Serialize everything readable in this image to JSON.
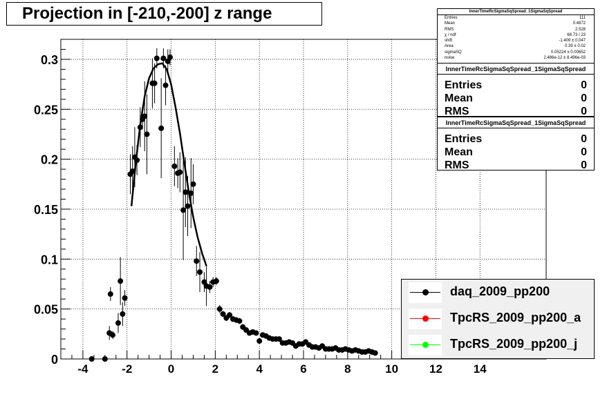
{
  "title": "Projection in [-210,-200] z range",
  "chart_data": {
    "type": "scatter",
    "xlim": [
      -5,
      17
    ],
    "ylim": [
      0,
      0.32
    ],
    "grid": true,
    "x_ticks": [
      "-4",
      "-2",
      "0",
      "2",
      "4",
      "6",
      "8",
      "10",
      "12",
      "14"
    ],
    "x_tick_values": [
      -4,
      -2,
      0,
      2,
      4,
      6,
      8,
      10,
      12,
      14
    ],
    "y_ticks": [
      "0",
      "0.05",
      "0.1",
      "0.15",
      "0.2",
      "0.25",
      "0.3"
    ],
    "y_tick_values": [
      0,
      0.05,
      0.1,
      0.15,
      0.2,
      0.25,
      0.3
    ],
    "series": [
      {
        "name": "daq_2009_pp200",
        "color": "#000000",
        "points": [
          [
            -3.6,
            0.0,
            0.0
          ],
          [
            -3.0,
            0.0,
            0.0
          ],
          [
            -2.8,
            0.026,
            0.007
          ],
          [
            -2.75,
            0.065,
            0.007
          ],
          [
            -2.65,
            0.024,
            0.004
          ],
          [
            -2.4,
            0.036,
            0.01
          ],
          [
            -2.3,
            0.078,
            0.024
          ],
          [
            -2.2,
            0.045,
            0.012
          ],
          [
            -2.1,
            0.061,
            0.008
          ],
          [
            -1.85,
            0.185,
            0.02
          ],
          [
            -1.75,
            0.188,
            0.025
          ],
          [
            -1.65,
            0.202,
            0.03
          ],
          [
            -1.55,
            0.199,
            0.015
          ],
          [
            -1.4,
            0.232,
            0.02
          ],
          [
            -1.3,
            0.24,
            0.01
          ],
          [
            -1.2,
            0.243,
            0.035
          ],
          [
            -1.1,
            0.225,
            0.04
          ],
          [
            -0.85,
            0.276,
            0.025
          ],
          [
            -0.75,
            0.276,
            0.02
          ],
          [
            -0.65,
            0.301,
            0.01
          ],
          [
            -0.45,
            0.231,
            0.05
          ],
          [
            -0.35,
            0.301,
            0.01
          ],
          [
            -0.25,
            0.274,
            0.02
          ],
          [
            -0.15,
            0.298,
            0.012
          ],
          [
            -0.05,
            0.302,
            0.008
          ],
          [
            0.15,
            0.193,
            0.02
          ],
          [
            0.3,
            0.186,
            0.015
          ],
          [
            0.4,
            0.187,
            0.02
          ],
          [
            0.55,
            0.149,
            0.05
          ],
          [
            0.65,
            0.167,
            0.035
          ],
          [
            0.75,
            0.153,
            0.03
          ],
          [
            0.9,
            0.166,
            0.035
          ],
          [
            1.0,
            0.175,
            0.02
          ],
          [
            1.15,
            0.098,
            0.015
          ],
          [
            1.3,
            0.087,
            0.02
          ],
          [
            1.5,
            0.077,
            0.01
          ],
          [
            1.6,
            0.073,
            0.02
          ],
          [
            1.75,
            0.072,
            0.006
          ],
          [
            1.9,
            0.077,
            0.005
          ],
          [
            2.05,
            0.078,
            0.004
          ],
          [
            2.2,
            0.05,
            0.004
          ],
          [
            2.35,
            0.045,
            0.003
          ],
          [
            2.5,
            0.041,
            0.003
          ],
          [
            2.65,
            0.044,
            0.003
          ],
          [
            2.8,
            0.04,
            0.003
          ],
          [
            2.95,
            0.039,
            0.003
          ],
          [
            3.1,
            0.038,
            0.003
          ],
          [
            3.25,
            0.032,
            0.003
          ],
          [
            3.4,
            0.029,
            0.002
          ],
          [
            3.55,
            0.026,
            0.002
          ],
          [
            3.7,
            0.027,
            0.002
          ],
          [
            3.85,
            0.026,
            0.002
          ],
          [
            4.0,
            0.018,
            0.002
          ],
          [
            4.15,
            0.024,
            0.002
          ],
          [
            4.3,
            0.023,
            0.002
          ],
          [
            4.45,
            0.021,
            0.002
          ],
          [
            4.6,
            0.02,
            0.002
          ],
          [
            4.75,
            0.02,
            0.002
          ],
          [
            4.9,
            0.02,
            0.002
          ],
          [
            5.05,
            0.016,
            0.002
          ],
          [
            5.2,
            0.016,
            0.002
          ],
          [
            5.35,
            0.017,
            0.002
          ],
          [
            5.5,
            0.016,
            0.002
          ],
          [
            5.65,
            0.013,
            0.002
          ],
          [
            5.8,
            0.015,
            0.002
          ],
          [
            5.95,
            0.015,
            0.002
          ],
          [
            6.1,
            0.017,
            0.002
          ],
          [
            6.25,
            0.014,
            0.002
          ],
          [
            6.4,
            0.012,
            0.002
          ],
          [
            6.55,
            0.012,
            0.002
          ],
          [
            6.7,
            0.011,
            0.002
          ],
          [
            6.85,
            0.013,
            0.002
          ],
          [
            7.0,
            0.01,
            0.002
          ],
          [
            7.15,
            0.01,
            0.002
          ],
          [
            7.3,
            0.01,
            0.002
          ],
          [
            7.45,
            0.011,
            0.002
          ],
          [
            7.6,
            0.009,
            0.002
          ],
          [
            7.75,
            0.009,
            0.002
          ],
          [
            7.9,
            0.01,
            0.002
          ],
          [
            8.05,
            0.009,
            0.002
          ],
          [
            8.2,
            0.008,
            0.002
          ],
          [
            8.35,
            0.009,
            0.002
          ],
          [
            8.5,
            0.008,
            0.002
          ],
          [
            8.65,
            0.007,
            0.002
          ],
          [
            8.8,
            0.007,
            0.002
          ],
          [
            8.95,
            0.008,
            0.002
          ],
          [
            9.1,
            0.007,
            0.002
          ],
          [
            9.25,
            0.006,
            0.002
          ]
        ]
      },
      {
        "name": "TpcRS_2009_pp200_a",
        "color": "#ff0000",
        "points": []
      },
      {
        "name": "TpcRS_2009_pp200_j",
        "color": "#00ff00",
        "points": []
      }
    ],
    "fit_curve": {
      "color": "#000000",
      "x": [
        -1.8,
        -1.6,
        -1.4,
        -1.2,
        -1.0,
        -0.8,
        -0.6,
        -0.4,
        -0.2,
        0.0,
        0.2,
        0.4,
        0.6,
        0.8,
        1.0,
        1.2,
        1.4,
        1.6
      ],
      "y": [
        0.153,
        0.197,
        0.235,
        0.263,
        0.281,
        0.291,
        0.295,
        0.296,
        0.29,
        0.275,
        0.252,
        0.226,
        0.196,
        0.167,
        0.142,
        0.122,
        0.106,
        0.093
      ]
    }
  },
  "stats_main": {
    "title": "InnerTimeRcSigmaSqSpread_1SigmaSqSpread",
    "rows": [
      {
        "label": "Entries",
        "value": "111"
      },
      {
        "label": "Mean",
        "value": "0.4872"
      },
      {
        "label": "RMS",
        "value": "2.528"
      },
      {
        "label": "χ  / ndf",
        "value": "68.73 / 23"
      },
      {
        "label": "shift",
        "value": "-1.409 ± 0.047"
      },
      {
        "label": "Area",
        "value": "0.39 ± 0.02"
      },
      {
        "label": "sigmaSQ",
        "value": "0.05224 ± 0.00652"
      },
      {
        "label": "noise",
        "value": "2.486e-12 ± 8.496e-03"
      }
    ]
  },
  "stats_a": {
    "title": "InnerTimeRcSigmaSqSpread_1SigmaSqSpread",
    "rows": [
      {
        "label": "Entries",
        "value": "0"
      },
      {
        "label": "Mean",
        "value": "0"
      },
      {
        "label": "RMS",
        "value": "0"
      }
    ]
  },
  "stats_b": {
    "title": "InnerTimeRcSigmaSqSpread_1SigmaSqSpread",
    "rows": [
      {
        "label": "Entries",
        "value": "0"
      },
      {
        "label": "Mean",
        "value": "0"
      },
      {
        "label": "RMS",
        "value": "0"
      }
    ]
  },
  "legend": {
    "entries": [
      {
        "label": "daq_2009_pp200",
        "color": "#000000"
      },
      {
        "label": "TpcRS_2009_pp200_a",
        "color": "#ff0000"
      },
      {
        "label": "TpcRS_2009_pp200_j",
        "color": "#00ff00"
      }
    ]
  }
}
